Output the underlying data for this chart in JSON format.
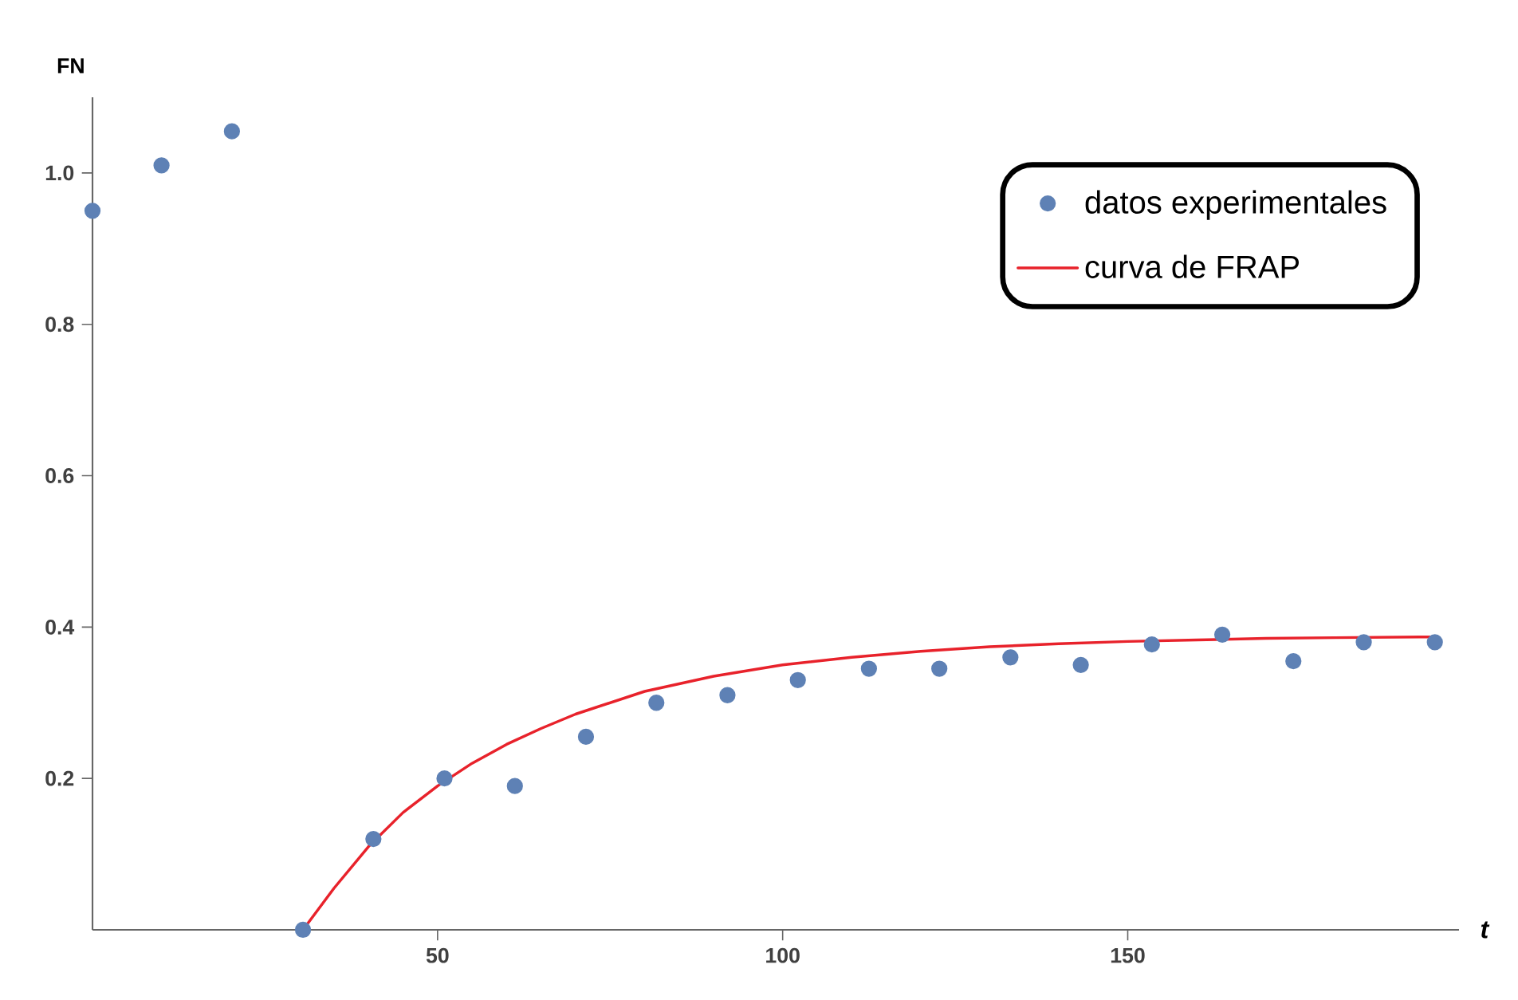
{
  "chart_data": {
    "type": "scatter",
    "xlabel": "t",
    "ylabel": "FN",
    "xlim": [
      0,
      198
    ],
    "ylim": [
      0,
      1.1
    ],
    "xticks": [
      50,
      100,
      150
    ],
    "yticks": [
      0.2,
      0.4,
      0.6,
      0.8,
      {
        "value": 1.0,
        "label": "1.0"
      }
    ],
    "legend": "top right",
    "grid": false,
    "series": [
      {
        "name": "datos experimentales",
        "marker": "circle",
        "color": "#5e81b5",
        "x": [
          0,
          10,
          20.2,
          30.5,
          40.7,
          51,
          61.2,
          71.5,
          81.7,
          92,
          102.2,
          112.5,
          122.7,
          133,
          143.2,
          153.5,
          163.7,
          174,
          184.2,
          194.5
        ],
        "values": [
          0.95,
          1.01,
          1.055,
          0,
          0.12,
          0.2,
          0.19,
          0.255,
          0.3,
          0.31,
          0.33,
          0.345,
          0.345,
          0.36,
          0.35,
          0.377,
          0.39,
          0.355,
          0.38,
          0.38
        ]
      },
      {
        "name": "curva de FRAP",
        "type": "line",
        "line_style": "solid",
        "color": "#e8222b",
        "x": [
          30.5,
          35,
          40,
          45,
          50,
          55,
          60,
          65,
          70,
          80,
          90,
          100,
          110,
          120,
          130,
          140,
          150,
          160,
          170,
          180,
          194.5
        ],
        "values": [
          0,
          0.055,
          0.11,
          0.155,
          0.19,
          0.22,
          0.245,
          0.266,
          0.285,
          0.315,
          0.335,
          0.35,
          0.36,
          0.368,
          0.374,
          0.378,
          0.381,
          0.383,
          0.385,
          0.386,
          0.387
        ]
      }
    ]
  }
}
